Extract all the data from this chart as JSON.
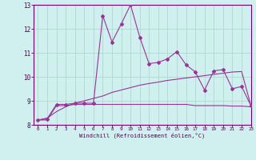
{
  "xlabel": "Windchill (Refroidissement éolien,°C)",
  "bg_color": "#cff0ee",
  "grid_color": "#b0d8d0",
  "line_color": "#993399",
  "x_hours": [
    0,
    1,
    2,
    3,
    4,
    5,
    6,
    7,
    8,
    9,
    10,
    11,
    12,
    13,
    14,
    15,
    16,
    17,
    18,
    19,
    20,
    21,
    22,
    23
  ],
  "line1_y": [
    8.2,
    8.25,
    8.85,
    8.85,
    8.9,
    8.9,
    8.9,
    12.55,
    11.45,
    12.2,
    13.0,
    11.65,
    10.55,
    10.6,
    10.75,
    11.05,
    10.5,
    10.2,
    9.45,
    10.25,
    10.3,
    9.5,
    9.6,
    8.8
  ],
  "line2_y": [
    8.2,
    8.2,
    8.8,
    8.8,
    8.85,
    8.85,
    8.85,
    8.85,
    8.85,
    8.85,
    8.85,
    8.85,
    8.85,
    8.85,
    8.85,
    8.85,
    8.85,
    8.8,
    8.8,
    8.8,
    8.8,
    8.78,
    8.78,
    8.75
  ],
  "line3_y": [
    8.2,
    8.28,
    8.55,
    8.75,
    8.9,
    9.0,
    9.1,
    9.2,
    9.35,
    9.45,
    9.55,
    9.65,
    9.72,
    9.78,
    9.85,
    9.9,
    9.95,
    10.0,
    10.05,
    10.1,
    10.15,
    10.2,
    10.22,
    8.8
  ],
  "ylim": [
    8.0,
    13.0
  ],
  "yticks": [
    8,
    9,
    10,
    11,
    12,
    13
  ],
  "xlim": [
    -0.5,
    23
  ]
}
